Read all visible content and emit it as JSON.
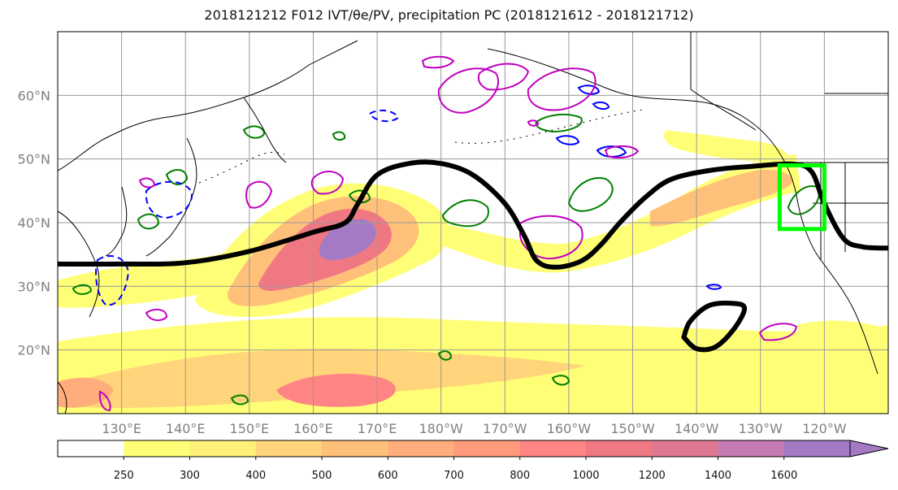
{
  "title": "2018121212 F012 IVT/θe/PV, precipitation PC (2018121612 - 2018121712)",
  "map": {
    "lon_range": [
      120,
      250
    ],
    "lat_range": [
      10,
      70
    ],
    "lat_labels": [
      {
        "lat": 60,
        "text": "60°N"
      },
      {
        "lat": 50,
        "text": "50°N"
      },
      {
        "lat": 40,
        "text": "40°N"
      },
      {
        "lat": 30,
        "text": "30°N"
      },
      {
        "lat": 20,
        "text": "20°N"
      }
    ],
    "lon_labels": [
      {
        "lon": 130,
        "text": "130°E"
      },
      {
        "lon": 140,
        "text": "140°E"
      },
      {
        "lon": 150,
        "text": "150°E"
      },
      {
        "lon": 160,
        "text": "160°E"
      },
      {
        "lon": 170,
        "text": "170°E"
      },
      {
        "lon": 180,
        "text": "180°W"
      },
      {
        "lon": 190,
        "text": "170°W"
      },
      {
        "lon": 200,
        "text": "160°W"
      },
      {
        "lon": 210,
        "text": "150°W"
      },
      {
        "lon": 220,
        "text": "140°W"
      },
      {
        "lon": 230,
        "text": "130°W"
      },
      {
        "lon": 240,
        "text": "120°W"
      }
    ],
    "target_box": {
      "lon_min": 233,
      "lon_max": 240,
      "lat_min": 39,
      "lat_max": 49,
      "color": "#00ff00"
    },
    "theta_e_contours": [
      {
        "name": "main",
        "points": [
          [
            120,
            33.5
          ],
          [
            130,
            33.5
          ],
          [
            140,
            33.7
          ],
          [
            150,
            35.5
          ],
          [
            160,
            38.5
          ],
          [
            165,
            40
          ],
          [
            167,
            43
          ],
          [
            170,
            47.5
          ],
          [
            175,
            49.3
          ],
          [
            180,
            49.3
          ],
          [
            185,
            47.5
          ],
          [
            190,
            43
          ],
          [
            193,
            38
          ],
          [
            195,
            34
          ],
          [
            198,
            33
          ],
          [
            202,
            34
          ],
          [
            205,
            36.5
          ],
          [
            208,
            40
          ],
          [
            212,
            44
          ],
          [
            216,
            46.8
          ],
          [
            222,
            48.2
          ],
          [
            228,
            48.8
          ],
          [
            235,
            49.2
          ],
          [
            238,
            48
          ],
          [
            240,
            43
          ],
          [
            243,
            37.5
          ],
          [
            246,
            36.2
          ],
          [
            250,
            36
          ]
        ]
      },
      {
        "name": "closed",
        "points": [
          [
            218,
            22
          ],
          [
            220,
            20.2
          ],
          [
            223,
            20.5
          ],
          [
            226,
            23.5
          ],
          [
            227.5,
            26.5
          ],
          [
            226,
            27.3
          ],
          [
            222,
            27
          ],
          [
            219,
            24.5
          ],
          [
            218,
            22
          ]
        ]
      }
    ],
    "ivt_levels": [
      {
        "value": 250,
        "color": "#ffff77"
      },
      {
        "value": 300,
        "color": "#fff07a"
      },
      {
        "value": 400,
        "color": "#ffd47a"
      },
      {
        "value": 500,
        "color": "#ffc07a"
      },
      {
        "value": 600,
        "color": "#ffad7a"
      },
      {
        "value": 700,
        "color": "#ff9a7a"
      },
      {
        "value": 800,
        "color": "#ff8484"
      },
      {
        "value": 1000,
        "color": "#f07882"
      },
      {
        "value": 1200,
        "color": "#de7890"
      },
      {
        "value": 1400,
        "color": "#c57ab4"
      },
      {
        "value": 1600,
        "color": "#a47ac4"
      }
    ],
    "contour_colors": {
      "positive": "#008000",
      "negative": "#0000ff",
      "pv": "#c000c0",
      "theta_e": "#000000"
    }
  },
  "colorbar": {
    "tick_labels": [
      "250",
      "300",
      "400",
      "500",
      "600",
      "700",
      "800",
      "1000",
      "1200",
      "1400",
      "1600"
    ],
    "colors": [
      "#ffffff",
      "#ffff77",
      "#fff07a",
      "#ffd47a",
      "#ffc07a",
      "#ffad7a",
      "#ff9a7a",
      "#ff8484",
      "#f07882",
      "#de7890",
      "#c57ab4",
      "#a47ac4"
    ],
    "extend": "max"
  }
}
